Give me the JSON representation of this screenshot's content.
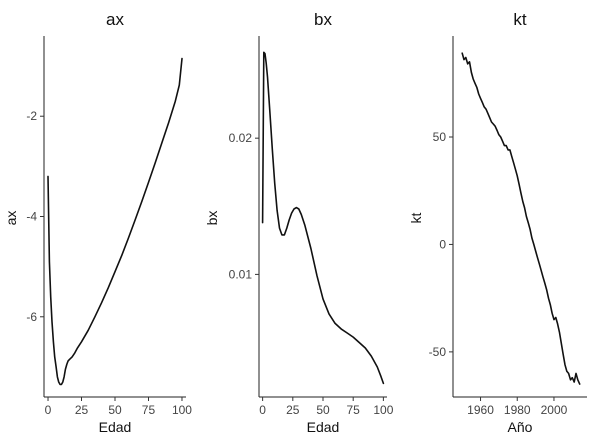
{
  "chart_data": [
    {
      "type": "line",
      "title": "ax",
      "xlabel": "Edad",
      "ylabel": "ax",
      "xlim": [
        -3,
        103
      ],
      "ylim": [
        -7.6,
        -0.4
      ],
      "xticks": [
        0,
        25,
        50,
        75,
        100
      ],
      "xtick_labels": [
        "0",
        "25",
        "50",
        "75",
        "100"
      ],
      "yticks": [
        -6,
        -4,
        -2
      ],
      "ytick_labels": [
        "-6",
        "-4",
        "-2"
      ],
      "grid": false,
      "series": [
        {
          "color": "#111111",
          "x": [
            0,
            1,
            2,
            3,
            4,
            5,
            6,
            7,
            8,
            9,
            10,
            11,
            12,
            13,
            14,
            15,
            16,
            18,
            20,
            22,
            25,
            30,
            35,
            40,
            45,
            50,
            55,
            60,
            65,
            70,
            75,
            80,
            85,
            90,
            95,
            98,
            100
          ],
          "y": [
            -3.2,
            -4.9,
            -5.6,
            -6.1,
            -6.5,
            -6.8,
            -7.0,
            -7.2,
            -7.3,
            -7.35,
            -7.35,
            -7.3,
            -7.2,
            -7.05,
            -6.95,
            -6.88,
            -6.85,
            -6.8,
            -6.72,
            -6.62,
            -6.5,
            -6.27,
            -6.0,
            -5.72,
            -5.42,
            -5.1,
            -4.78,
            -4.43,
            -4.07,
            -3.7,
            -3.32,
            -2.93,
            -2.53,
            -2.13,
            -1.7,
            -1.38,
            -0.85
          ]
        }
      ]
    },
    {
      "type": "line",
      "title": "bx",
      "xlabel": "Edad",
      "ylabel": "bx",
      "xlim": [
        -3,
        103
      ],
      "ylim": [
        0.001,
        0.0275
      ],
      "xticks": [
        0,
        25,
        50,
        75,
        100
      ],
      "xtick_labels": [
        "0",
        "25",
        "50",
        "75",
        "100"
      ],
      "yticks": [
        0.01,
        0.02
      ],
      "ytick_labels": [
        "0.01",
        "0.02"
      ],
      "grid": false,
      "series": [
        {
          "color": "#111111",
          "x": [
            0,
            1,
            2,
            3,
            4,
            5,
            6,
            8,
            10,
            12,
            14,
            16,
            18,
            20,
            22,
            24,
            26,
            28,
            30,
            32,
            35,
            40,
            45,
            50,
            55,
            60,
            65,
            70,
            75,
            80,
            85,
            90,
            95,
            98,
            100
          ],
          "y": [
            0.0138,
            0.0263,
            0.0262,
            0.0255,
            0.0245,
            0.0232,
            0.0219,
            0.0192,
            0.0167,
            0.0147,
            0.0134,
            0.0129,
            0.0129,
            0.0134,
            0.014,
            0.0145,
            0.0148,
            0.0149,
            0.0148,
            0.0144,
            0.0136,
            0.0119,
            0.0099,
            0.0082,
            0.0071,
            0.0064,
            0.006,
            0.0057,
            0.0054,
            0.005,
            0.0046,
            0.004,
            0.0032,
            0.0025,
            0.002
          ]
        }
      ]
    },
    {
      "type": "line",
      "title": "kt",
      "xlabel": "Año",
      "ylabel": "kt",
      "xlim": [
        1945,
        2018
      ],
      "ylim": [
        -71,
        97
      ],
      "xticks": [
        1960,
        1980,
        2000
      ],
      "xtick_labels": [
        "1960",
        "1980",
        "2000"
      ],
      "yticks": [
        -50,
        0,
        50
      ],
      "ytick_labels": [
        "-50",
        "0",
        "50"
      ],
      "grid": false,
      "series": [
        {
          "color": "#111111",
          "x": [
            1950,
            1951,
            1952,
            1953,
            1954,
            1955,
            1956,
            1957,
            1958,
            1959,
            1960,
            1961,
            1962,
            1963,
            1964,
            1965,
            1966,
            1967,
            1968,
            1969,
            1970,
            1971,
            1972,
            1973,
            1974,
            1975,
            1976,
            1977,
            1978,
            1979,
            1980,
            1981,
            1982,
            1983,
            1984,
            1985,
            1986,
            1987,
            1988,
            1989,
            1990,
            1991,
            1992,
            1993,
            1994,
            1995,
            1996,
            1997,
            1998,
            1999,
            2000,
            2001,
            2002,
            2003,
            2004,
            2005,
            2006,
            2007,
            2008,
            2009,
            2010,
            2011,
            2012,
            2013,
            2014
          ],
          "y": [
            89,
            86,
            87,
            84,
            85,
            80,
            77,
            75,
            73,
            70,
            68,
            66,
            64,
            63,
            61,
            59,
            57,
            56,
            55,
            53,
            51,
            50,
            48,
            46,
            46,
            44,
            44,
            41,
            38,
            35,
            32,
            28,
            24,
            20,
            17,
            13,
            10,
            7,
            3,
            0,
            -3,
            -6,
            -9,
            -12,
            -15,
            -18,
            -21,
            -25,
            -28,
            -32,
            -35,
            -34,
            -37,
            -41,
            -46,
            -51,
            -56,
            -59,
            -60,
            -63,
            -62,
            -64,
            -60,
            -63,
            -65
          ]
        }
      ]
    }
  ]
}
